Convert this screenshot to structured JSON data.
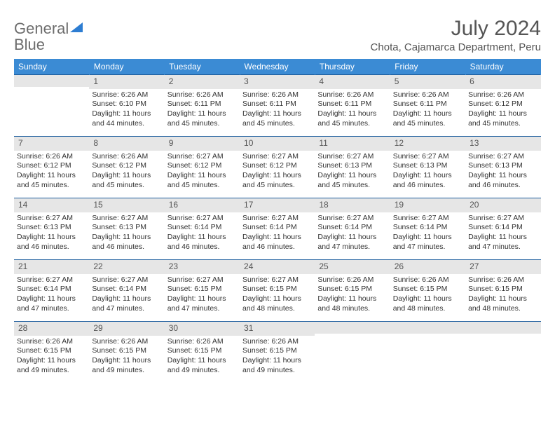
{
  "logo": {
    "text1": "General",
    "text2": "Blue"
  },
  "title": "July 2024",
  "subtitle": "Chota, Cajamarca Department, Peru",
  "colors": {
    "header_bg": "#3b8bd4",
    "daynum_bg": "#e6e6e6",
    "border": "#1f5f9f",
    "title_color": "#555555",
    "logo_gray": "#6d6d6d",
    "logo_blue": "#2d7dd2"
  },
  "fontsize": {
    "title": 30,
    "subtitle": 15,
    "dayhdr": 12,
    "daynum": 12,
    "info": 10.5
  },
  "day_headers": [
    "Sunday",
    "Monday",
    "Tuesday",
    "Wednesday",
    "Thursday",
    "Friday",
    "Saturday"
  ],
  "weeks": [
    [
      {
        "num": "",
        "sunrise": "",
        "sunset": "",
        "daylight": ""
      },
      {
        "num": "1",
        "sunrise": "6:26 AM",
        "sunset": "6:10 PM",
        "daylight": "11 hours and 44 minutes."
      },
      {
        "num": "2",
        "sunrise": "6:26 AM",
        "sunset": "6:11 PM",
        "daylight": "11 hours and 45 minutes."
      },
      {
        "num": "3",
        "sunrise": "6:26 AM",
        "sunset": "6:11 PM",
        "daylight": "11 hours and 45 minutes."
      },
      {
        "num": "4",
        "sunrise": "6:26 AM",
        "sunset": "6:11 PM",
        "daylight": "11 hours and 45 minutes."
      },
      {
        "num": "5",
        "sunrise": "6:26 AM",
        "sunset": "6:11 PM",
        "daylight": "11 hours and 45 minutes."
      },
      {
        "num": "6",
        "sunrise": "6:26 AM",
        "sunset": "6:12 PM",
        "daylight": "11 hours and 45 minutes."
      }
    ],
    [
      {
        "num": "7",
        "sunrise": "6:26 AM",
        "sunset": "6:12 PM",
        "daylight": "11 hours and 45 minutes."
      },
      {
        "num": "8",
        "sunrise": "6:26 AM",
        "sunset": "6:12 PM",
        "daylight": "11 hours and 45 minutes."
      },
      {
        "num": "9",
        "sunrise": "6:27 AM",
        "sunset": "6:12 PM",
        "daylight": "11 hours and 45 minutes."
      },
      {
        "num": "10",
        "sunrise": "6:27 AM",
        "sunset": "6:12 PM",
        "daylight": "11 hours and 45 minutes."
      },
      {
        "num": "11",
        "sunrise": "6:27 AM",
        "sunset": "6:13 PM",
        "daylight": "11 hours and 45 minutes."
      },
      {
        "num": "12",
        "sunrise": "6:27 AM",
        "sunset": "6:13 PM",
        "daylight": "11 hours and 46 minutes."
      },
      {
        "num": "13",
        "sunrise": "6:27 AM",
        "sunset": "6:13 PM",
        "daylight": "11 hours and 46 minutes."
      }
    ],
    [
      {
        "num": "14",
        "sunrise": "6:27 AM",
        "sunset": "6:13 PM",
        "daylight": "11 hours and 46 minutes."
      },
      {
        "num": "15",
        "sunrise": "6:27 AM",
        "sunset": "6:13 PM",
        "daylight": "11 hours and 46 minutes."
      },
      {
        "num": "16",
        "sunrise": "6:27 AM",
        "sunset": "6:14 PM",
        "daylight": "11 hours and 46 minutes."
      },
      {
        "num": "17",
        "sunrise": "6:27 AM",
        "sunset": "6:14 PM",
        "daylight": "11 hours and 46 minutes."
      },
      {
        "num": "18",
        "sunrise": "6:27 AM",
        "sunset": "6:14 PM",
        "daylight": "11 hours and 47 minutes."
      },
      {
        "num": "19",
        "sunrise": "6:27 AM",
        "sunset": "6:14 PM",
        "daylight": "11 hours and 47 minutes."
      },
      {
        "num": "20",
        "sunrise": "6:27 AM",
        "sunset": "6:14 PM",
        "daylight": "11 hours and 47 minutes."
      }
    ],
    [
      {
        "num": "21",
        "sunrise": "6:27 AM",
        "sunset": "6:14 PM",
        "daylight": "11 hours and 47 minutes."
      },
      {
        "num": "22",
        "sunrise": "6:27 AM",
        "sunset": "6:14 PM",
        "daylight": "11 hours and 47 minutes."
      },
      {
        "num": "23",
        "sunrise": "6:27 AM",
        "sunset": "6:15 PM",
        "daylight": "11 hours and 47 minutes."
      },
      {
        "num": "24",
        "sunrise": "6:27 AM",
        "sunset": "6:15 PM",
        "daylight": "11 hours and 48 minutes."
      },
      {
        "num": "25",
        "sunrise": "6:26 AM",
        "sunset": "6:15 PM",
        "daylight": "11 hours and 48 minutes."
      },
      {
        "num": "26",
        "sunrise": "6:26 AM",
        "sunset": "6:15 PM",
        "daylight": "11 hours and 48 minutes."
      },
      {
        "num": "27",
        "sunrise": "6:26 AM",
        "sunset": "6:15 PM",
        "daylight": "11 hours and 48 minutes."
      }
    ],
    [
      {
        "num": "28",
        "sunrise": "6:26 AM",
        "sunset": "6:15 PM",
        "daylight": "11 hours and 49 minutes."
      },
      {
        "num": "29",
        "sunrise": "6:26 AM",
        "sunset": "6:15 PM",
        "daylight": "11 hours and 49 minutes."
      },
      {
        "num": "30",
        "sunrise": "6:26 AM",
        "sunset": "6:15 PM",
        "daylight": "11 hours and 49 minutes."
      },
      {
        "num": "31",
        "sunrise": "6:26 AM",
        "sunset": "6:15 PM",
        "daylight": "11 hours and 49 minutes."
      },
      {
        "num": "",
        "sunrise": "",
        "sunset": "",
        "daylight": ""
      },
      {
        "num": "",
        "sunrise": "",
        "sunset": "",
        "daylight": ""
      },
      {
        "num": "",
        "sunrise": "",
        "sunset": "",
        "daylight": ""
      }
    ]
  ],
  "labels": {
    "sunrise": "Sunrise:",
    "sunset": "Sunset:",
    "daylight": "Daylight:"
  }
}
